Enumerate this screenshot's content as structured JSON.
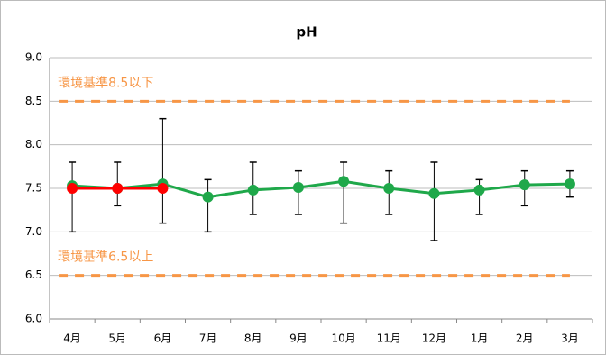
{
  "chart_data": {
    "type": "line",
    "title": "pH",
    "categories": [
      "4月",
      "5月",
      "6月",
      "7月",
      "8月",
      "9月",
      "10月",
      "11月",
      "12月",
      "1月",
      "2月",
      "3月"
    ],
    "series": [
      {
        "color": "#1FA84A",
        "values": [
          7.53,
          7.5,
          7.55,
          7.4,
          7.48,
          7.51,
          7.58,
          7.5,
          7.44,
          7.48,
          7.54,
          7.55
        ],
        "min": [
          7.0,
          7.3,
          7.1,
          7.0,
          7.2,
          7.2,
          7.1,
          7.2,
          6.9,
          7.2,
          7.3,
          7.4
        ],
        "max": [
          7.8,
          7.8,
          8.3,
          7.6,
          7.8,
          7.7,
          7.8,
          7.7,
          7.8,
          7.6,
          7.7,
          7.7
        ]
      },
      {
        "color": "#FF0000",
        "values": [
          7.5,
          7.5,
          7.5,
          null,
          null,
          null,
          null,
          null,
          null,
          null,
          null,
          null
        ]
      }
    ],
    "reference_lines": [
      {
        "value": 8.5,
        "label": "環境基準8.5以下",
        "color": "#F79646"
      },
      {
        "value": 6.5,
        "label": "環境基準6.5以上",
        "color": "#F79646"
      }
    ],
    "ylim": [
      6.0,
      9.0
    ],
    "yticks": [
      {
        "value": 6.0,
        "label": "6.0"
      },
      6.5,
      {
        "value": 7.0,
        "label": "7.0"
      },
      7.5,
      {
        "value": 8.0,
        "label": "8.0"
      },
      8.5,
      {
        "value": 9.0,
        "label": "9.0"
      }
    ],
    "grid": true
  }
}
